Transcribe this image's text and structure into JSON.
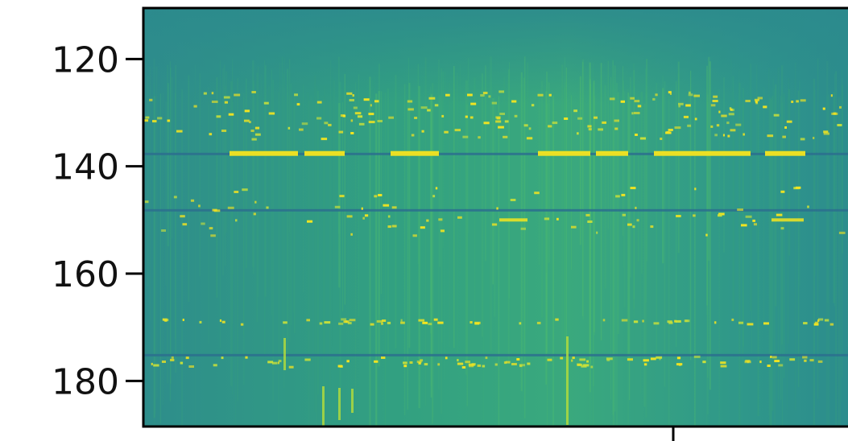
{
  "chart_data": {
    "type": "heatmap",
    "title": "",
    "xlabel": "",
    "ylabel": "",
    "ylim": [
      188.5,
      110.5
    ],
    "y_inverted": true,
    "yticks": [
      120,
      140,
      160,
      180
    ],
    "ytick_labels": [
      "120",
      "140",
      "160",
      "180"
    ],
    "xticks_visible": 1,
    "xtick_labels": [],
    "colormap": "viridis",
    "colors": {
      "background": "#2d8c8c",
      "dark_stripe": "#2b6f8e",
      "bright": "#f5e51f",
      "mid_green": "#3fae78"
    },
    "bright_bands_y": [
      137.5,
      150,
      169,
      176.5
    ],
    "dark_stripes_y": [
      137.7,
      148.2,
      175.2
    ]
  }
}
